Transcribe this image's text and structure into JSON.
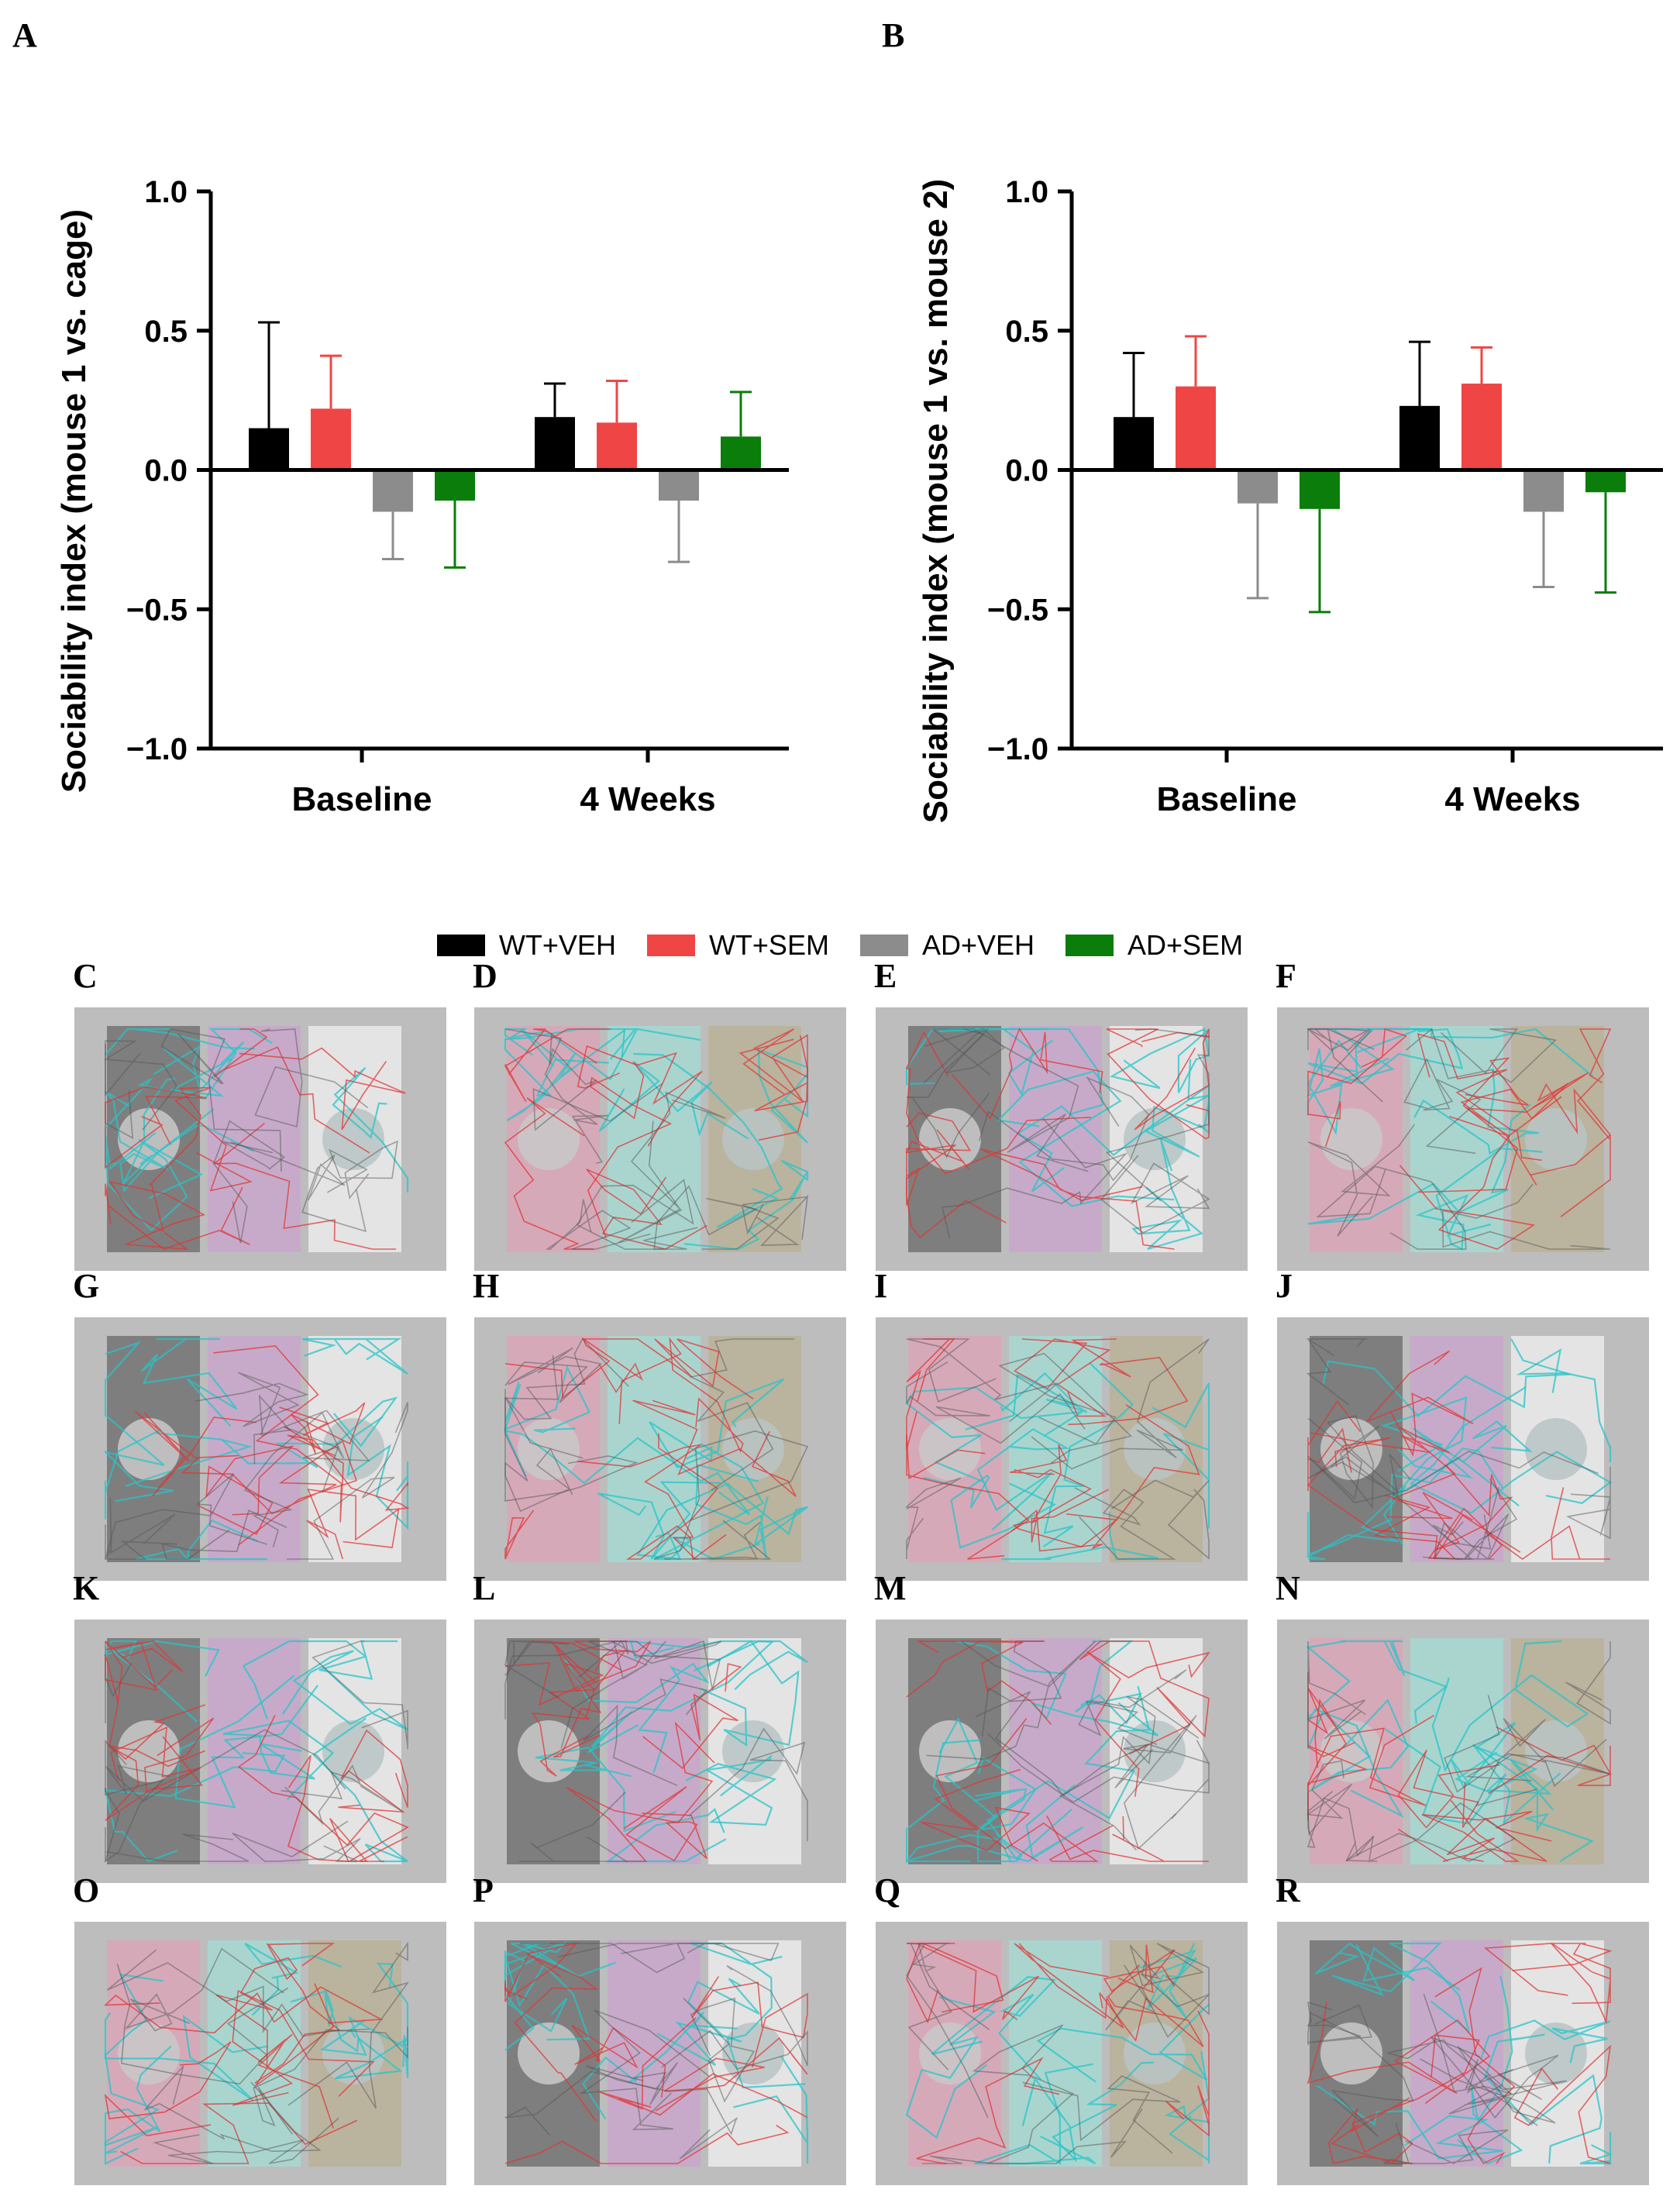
{
  "legend": [
    {
      "label": "WT+VEH",
      "color": "#000000"
    },
    {
      "label": "WT+SEM",
      "color": "#f04545"
    },
    {
      "label": "AD+VEH",
      "color": "#8c8c8c"
    },
    {
      "label": "AD+SEM",
      "color": "#0a7d0a"
    }
  ],
  "chart_data": [
    {
      "panel": "A",
      "type": "bar",
      "ylabel": "Sociability index (mouse 1 vs. cage)",
      "categories": [
        "Baseline",
        "4 Weeks"
      ],
      "ylim": [
        -1.0,
        1.0
      ],
      "yticks": [
        "1.0",
        "0.5",
        "0.0",
        "−0.5",
        "−1.0"
      ],
      "ytick_values": [
        1.0,
        0.5,
        0.0,
        -0.5,
        -1.0
      ],
      "series": [
        {
          "name": "WT+VEH",
          "color": "#000000",
          "values": [
            0.15,
            0.19
          ],
          "errors": [
            0.38,
            0.12
          ]
        },
        {
          "name": "WT+SEM",
          "color": "#f04545",
          "values": [
            0.22,
            0.17
          ],
          "errors": [
            0.19,
            0.15
          ]
        },
        {
          "name": "AD+VEH",
          "color": "#8c8c8c",
          "values": [
            -0.15,
            -0.11
          ],
          "errors": [
            0.17,
            0.22
          ]
        },
        {
          "name": "AD+SEM",
          "color": "#0a7d0a",
          "values": [
            -0.11,
            0.12
          ],
          "errors": [
            0.24,
            0.16
          ]
        }
      ]
    },
    {
      "panel": "B",
      "type": "bar",
      "ylabel": "Sociability index (mouse 1 vs. mouse 2)",
      "categories": [
        "Baseline",
        "4 Weeks"
      ],
      "ylim": [
        -1.0,
        1.0
      ],
      "yticks": [
        "1.0",
        "0.5",
        "0.0",
        "−0.5",
        "−1.0"
      ],
      "ytick_values": [
        1.0,
        0.5,
        0.0,
        -0.5,
        -1.0
      ],
      "series": [
        {
          "name": "WT+VEH",
          "color": "#000000",
          "values": [
            0.19,
            0.23
          ],
          "errors": [
            0.23,
            0.23
          ]
        },
        {
          "name": "WT+SEM",
          "color": "#f04545",
          "values": [
            0.3,
            0.31
          ],
          "errors": [
            0.18,
            0.13
          ]
        },
        {
          "name": "AD+VEH",
          "color": "#8c8c8c",
          "values": [
            -0.12,
            -0.15
          ],
          "errors": [
            0.34,
            0.27
          ]
        },
        {
          "name": "AD+SEM",
          "color": "#0a7d0a",
          "values": [
            -0.14,
            -0.08
          ],
          "errors": [
            0.37,
            0.36
          ]
        }
      ]
    }
  ],
  "track_panels": [
    {
      "letter": "C",
      "zones": [
        "#7a7a7a",
        "#c7a9c9",
        "#e6e6e6"
      ]
    },
    {
      "letter": "D",
      "zones": [
        "#d7a8b8",
        "#a9d6d0",
        "#b9b29c"
      ]
    },
    {
      "letter": "E",
      "zones": [
        "#7a7a7a",
        "#c7a9c9",
        "#e6e6e6"
      ]
    },
    {
      "letter": "F",
      "zones": [
        "#d7a8b8",
        "#a9d6d0",
        "#b9b29c"
      ]
    },
    {
      "letter": "G",
      "zones": [
        "#7a7a7a",
        "#c7a9c9",
        "#e6e6e6"
      ]
    },
    {
      "letter": "H",
      "zones": [
        "#d7a8b8",
        "#a9d6d0",
        "#b9b29c"
      ]
    },
    {
      "letter": "I",
      "zones": [
        "#d7a8b8",
        "#a9d6d0",
        "#b9b29c"
      ]
    },
    {
      "letter": "J",
      "zones": [
        "#7a7a7a",
        "#c7a9c9",
        "#e6e6e6"
      ]
    },
    {
      "letter": "K",
      "zones": [
        "#7a7a7a",
        "#c7a9c9",
        "#e6e6e6"
      ]
    },
    {
      "letter": "L",
      "zones": [
        "#7a7a7a",
        "#c7a9c9",
        "#e6e6e6"
      ]
    },
    {
      "letter": "M",
      "zones": [
        "#7a7a7a",
        "#c7a9c9",
        "#e6e6e6"
      ]
    },
    {
      "letter": "N",
      "zones": [
        "#d7a8b8",
        "#a9d6d0",
        "#b9b29c"
      ]
    },
    {
      "letter": "O",
      "zones": [
        "#d7a8b8",
        "#a9d6d0",
        "#b9b29c"
      ]
    },
    {
      "letter": "P",
      "zones": [
        "#7a7a7a",
        "#c7a9c9",
        "#e6e6e6"
      ]
    },
    {
      "letter": "Q",
      "zones": [
        "#d7a8b8",
        "#a9d6d0",
        "#b9b29c"
      ]
    },
    {
      "letter": "R",
      "zones": [
        "#7a7a7a",
        "#c7a9c9",
        "#e6e6e6"
      ]
    }
  ]
}
